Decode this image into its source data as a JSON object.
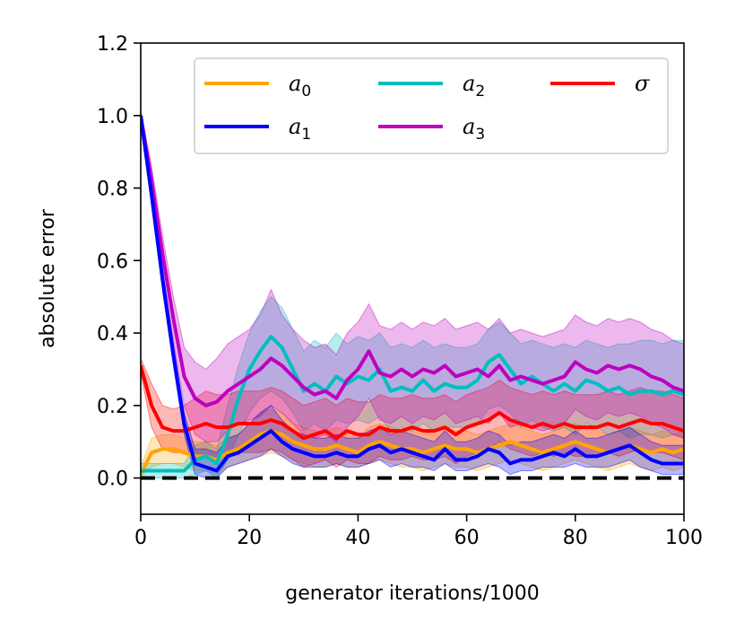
{
  "chart_data": {
    "type": "line",
    "title": "",
    "xlabel": "generator iterations/1000",
    "ylabel": "absolute error",
    "xlim": [
      0,
      100
    ],
    "ylim": [
      -0.1,
      1.2
    ],
    "xticks": [
      0,
      20,
      40,
      60,
      80,
      100
    ],
    "xtick_labels": [
      "0",
      "20",
      "40",
      "60",
      "80",
      "100"
    ],
    "yticks": [
      0.0,
      0.2,
      0.4,
      0.6,
      0.8,
      1.0,
      1.2
    ],
    "ytick_labels": [
      "0.0",
      "0.2",
      "0.4",
      "0.6",
      "0.8",
      "1.0",
      "1.2"
    ],
    "reference_line": {
      "y": 0,
      "style": "dashed",
      "color": "#000000"
    },
    "legend": {
      "placement": "top-right",
      "columns": 3
    },
    "x": [
      0,
      2,
      4,
      6,
      8,
      10,
      12,
      14,
      16,
      18,
      20,
      22,
      24,
      26,
      28,
      30,
      32,
      34,
      36,
      38,
      40,
      42,
      44,
      46,
      48,
      50,
      52,
      54,
      56,
      58,
      60,
      62,
      64,
      66,
      68,
      70,
      72,
      74,
      76,
      78,
      80,
      82,
      84,
      86,
      88,
      90,
      92,
      94,
      96,
      98,
      100
    ],
    "series": [
      {
        "name": "a",
        "sub": "0",
        "color": "#ffa500",
        "values": [
          0.01,
          0.07,
          0.08,
          0.08,
          0.07,
          0.06,
          0.06,
          0.05,
          0.07,
          0.08,
          0.1,
          0.12,
          0.13,
          0.12,
          0.1,
          0.09,
          0.08,
          0.08,
          0.09,
          0.08,
          0.07,
          0.09,
          0.1,
          0.09,
          0.08,
          0.08,
          0.07,
          0.08,
          0.09,
          0.08,
          0.08,
          0.07,
          0.08,
          0.09,
          0.1,
          0.09,
          0.08,
          0.07,
          0.08,
          0.09,
          0.1,
          0.09,
          0.08,
          0.07,
          0.08,
          0.09,
          0.08,
          0.07,
          0.08,
          0.07,
          0.08
        ],
        "lower": [
          0.0,
          0.03,
          0.04,
          0.04,
          0.03,
          0.02,
          0.02,
          0.01,
          0.03,
          0.04,
          0.05,
          0.06,
          0.07,
          0.06,
          0.05,
          0.04,
          0.03,
          0.03,
          0.04,
          0.03,
          0.03,
          0.04,
          0.05,
          0.04,
          0.03,
          0.03,
          0.02,
          0.03,
          0.04,
          0.03,
          0.03,
          0.02,
          0.03,
          0.04,
          0.05,
          0.04,
          0.03,
          0.02,
          0.03,
          0.04,
          0.05,
          0.04,
          0.03,
          0.02,
          0.03,
          0.04,
          0.03,
          0.02,
          0.03,
          0.02,
          0.03
        ],
        "upper": [
          0.03,
          0.11,
          0.12,
          0.12,
          0.11,
          0.1,
          0.1,
          0.09,
          0.11,
          0.12,
          0.15,
          0.18,
          0.19,
          0.18,
          0.15,
          0.14,
          0.13,
          0.13,
          0.14,
          0.13,
          0.11,
          0.14,
          0.15,
          0.14,
          0.13,
          0.13,
          0.12,
          0.13,
          0.14,
          0.13,
          0.13,
          0.12,
          0.13,
          0.14,
          0.15,
          0.14,
          0.13,
          0.12,
          0.13,
          0.14,
          0.15,
          0.14,
          0.13,
          0.12,
          0.13,
          0.14,
          0.13,
          0.12,
          0.13,
          0.12,
          0.13
        ]
      },
      {
        "name": "a",
        "sub": "2",
        "color": "#00bfbf",
        "values": [
          0.02,
          0.02,
          0.02,
          0.02,
          0.02,
          0.05,
          0.06,
          0.04,
          0.12,
          0.22,
          0.3,
          0.35,
          0.39,
          0.36,
          0.3,
          0.24,
          0.26,
          0.24,
          0.28,
          0.26,
          0.28,
          0.27,
          0.3,
          0.24,
          0.25,
          0.24,
          0.27,
          0.24,
          0.26,
          0.25,
          0.25,
          0.27,
          0.32,
          0.34,
          0.3,
          0.26,
          0.28,
          0.26,
          0.24,
          0.26,
          0.24,
          0.27,
          0.26,
          0.24,
          0.25,
          0.23,
          0.24,
          0.24,
          0.23,
          0.24,
          0.23
        ],
        "lower": [
          0.0,
          0.0,
          0.0,
          0.0,
          0.0,
          0.01,
          0.02,
          0.0,
          0.05,
          0.12,
          0.18,
          0.22,
          0.24,
          0.22,
          0.18,
          0.13,
          0.15,
          0.13,
          0.16,
          0.15,
          0.16,
          0.15,
          0.17,
          0.13,
          0.14,
          0.13,
          0.15,
          0.13,
          0.14,
          0.14,
          0.14,
          0.15,
          0.19,
          0.2,
          0.18,
          0.14,
          0.16,
          0.14,
          0.13,
          0.14,
          0.12,
          0.15,
          0.14,
          0.12,
          0.13,
          0.11,
          0.12,
          0.12,
          0.11,
          0.12,
          0.11
        ],
        "upper": [
          0.04,
          0.04,
          0.04,
          0.04,
          0.04,
          0.09,
          0.1,
          0.08,
          0.2,
          0.31,
          0.4,
          0.46,
          0.5,
          0.47,
          0.41,
          0.35,
          0.38,
          0.36,
          0.4,
          0.37,
          0.39,
          0.38,
          0.4,
          0.36,
          0.37,
          0.36,
          0.38,
          0.36,
          0.37,
          0.36,
          0.36,
          0.37,
          0.41,
          0.43,
          0.4,
          0.37,
          0.38,
          0.37,
          0.36,
          0.37,
          0.36,
          0.38,
          0.37,
          0.36,
          0.37,
          0.37,
          0.38,
          0.38,
          0.37,
          0.38,
          0.38
        ]
      },
      {
        "name": "σ",
        "sub": "",
        "color": "#ff0000",
        "values": [
          0.31,
          0.2,
          0.14,
          0.13,
          0.13,
          0.14,
          0.15,
          0.14,
          0.14,
          0.15,
          0.15,
          0.15,
          0.16,
          0.15,
          0.13,
          0.11,
          0.12,
          0.13,
          0.11,
          0.13,
          0.12,
          0.12,
          0.14,
          0.13,
          0.13,
          0.14,
          0.13,
          0.13,
          0.14,
          0.12,
          0.14,
          0.15,
          0.16,
          0.18,
          0.16,
          0.15,
          0.14,
          0.15,
          0.14,
          0.15,
          0.14,
          0.14,
          0.14,
          0.15,
          0.14,
          0.15,
          0.16,
          0.15,
          0.15,
          0.14,
          0.13
        ],
        "lower": [
          0.29,
          0.14,
          0.08,
          0.07,
          0.07,
          0.06,
          0.06,
          0.05,
          0.06,
          0.07,
          0.07,
          0.07,
          0.08,
          0.07,
          0.05,
          0.03,
          0.04,
          0.05,
          0.03,
          0.05,
          0.04,
          0.04,
          0.06,
          0.05,
          0.05,
          0.06,
          0.05,
          0.05,
          0.06,
          0.04,
          0.06,
          0.07,
          0.08,
          0.1,
          0.08,
          0.07,
          0.06,
          0.07,
          0.06,
          0.07,
          0.06,
          0.06,
          0.06,
          0.07,
          0.06,
          0.07,
          0.08,
          0.07,
          0.07,
          0.06,
          0.05
        ],
        "upper": [
          0.33,
          0.26,
          0.2,
          0.19,
          0.2,
          0.22,
          0.24,
          0.23,
          0.23,
          0.24,
          0.24,
          0.24,
          0.25,
          0.24,
          0.22,
          0.2,
          0.21,
          0.22,
          0.2,
          0.22,
          0.21,
          0.21,
          0.23,
          0.22,
          0.22,
          0.23,
          0.22,
          0.22,
          0.23,
          0.21,
          0.23,
          0.24,
          0.25,
          0.27,
          0.25,
          0.24,
          0.23,
          0.24,
          0.23,
          0.24,
          0.23,
          0.23,
          0.23,
          0.24,
          0.23,
          0.24,
          0.25,
          0.24,
          0.24,
          0.23,
          0.22
        ]
      },
      {
        "name": "a",
        "sub": "3",
        "color": "#bf00bf",
        "values": [
          1.0,
          0.82,
          0.62,
          0.44,
          0.28,
          0.22,
          0.2,
          0.21,
          0.24,
          0.26,
          0.28,
          0.3,
          0.33,
          0.31,
          0.28,
          0.25,
          0.23,
          0.24,
          0.22,
          0.27,
          0.3,
          0.35,
          0.29,
          0.28,
          0.3,
          0.28,
          0.3,
          0.29,
          0.31,
          0.28,
          0.29,
          0.3,
          0.28,
          0.31,
          0.27,
          0.28,
          0.27,
          0.26,
          0.27,
          0.28,
          0.32,
          0.3,
          0.29,
          0.31,
          0.3,
          0.31,
          0.3,
          0.28,
          0.27,
          0.25,
          0.24
        ],
        "lower": [
          0.99,
          0.78,
          0.57,
          0.38,
          0.2,
          0.12,
          0.1,
          0.1,
          0.13,
          0.15,
          0.16,
          0.17,
          0.2,
          0.18,
          0.15,
          0.12,
          0.11,
          0.12,
          0.1,
          0.14,
          0.17,
          0.22,
          0.16,
          0.15,
          0.17,
          0.15,
          0.17,
          0.16,
          0.18,
          0.15,
          0.16,
          0.17,
          0.15,
          0.18,
          0.14,
          0.15,
          0.14,
          0.13,
          0.14,
          0.15,
          0.19,
          0.17,
          0.16,
          0.18,
          0.17,
          0.18,
          0.17,
          0.15,
          0.14,
          0.12,
          0.11
        ],
        "upper": [
          1.01,
          0.86,
          0.67,
          0.5,
          0.36,
          0.32,
          0.3,
          0.33,
          0.37,
          0.39,
          0.41,
          0.45,
          0.52,
          0.45,
          0.41,
          0.38,
          0.36,
          0.37,
          0.34,
          0.4,
          0.43,
          0.48,
          0.42,
          0.41,
          0.43,
          0.41,
          0.43,
          0.42,
          0.44,
          0.41,
          0.42,
          0.43,
          0.41,
          0.44,
          0.4,
          0.41,
          0.4,
          0.39,
          0.4,
          0.41,
          0.45,
          0.43,
          0.42,
          0.44,
          0.43,
          0.44,
          0.43,
          0.41,
          0.4,
          0.38,
          0.37
        ]
      },
      {
        "name": "a",
        "sub": "1",
        "color": "#0000ff",
        "values": [
          1.0,
          0.78,
          0.55,
          0.34,
          0.15,
          0.04,
          0.03,
          0.02,
          0.06,
          0.07,
          0.09,
          0.11,
          0.13,
          0.1,
          0.08,
          0.07,
          0.06,
          0.06,
          0.07,
          0.06,
          0.06,
          0.08,
          0.09,
          0.07,
          0.08,
          0.07,
          0.06,
          0.05,
          0.08,
          0.05,
          0.05,
          0.06,
          0.08,
          0.07,
          0.04,
          0.05,
          0.05,
          0.06,
          0.07,
          0.06,
          0.08,
          0.06,
          0.06,
          0.07,
          0.08,
          0.09,
          0.07,
          0.05,
          0.04,
          0.04,
          0.04
        ],
        "lower": [
          0.99,
          0.76,
          0.52,
          0.31,
          0.12,
          0.01,
          0.0,
          0.0,
          0.03,
          0.04,
          0.05,
          0.06,
          0.08,
          0.06,
          0.04,
          0.03,
          0.03,
          0.03,
          0.04,
          0.03,
          0.03,
          0.04,
          0.05,
          0.03,
          0.04,
          0.03,
          0.03,
          0.02,
          0.04,
          0.02,
          0.02,
          0.03,
          0.04,
          0.03,
          0.01,
          0.02,
          0.02,
          0.03,
          0.03,
          0.03,
          0.04,
          0.03,
          0.03,
          0.03,
          0.04,
          0.05,
          0.03,
          0.02,
          0.01,
          0.01,
          0.01
        ],
        "upper": [
          1.01,
          0.8,
          0.58,
          0.37,
          0.18,
          0.08,
          0.08,
          0.07,
          0.11,
          0.12,
          0.15,
          0.18,
          0.2,
          0.16,
          0.13,
          0.12,
          0.11,
          0.11,
          0.12,
          0.11,
          0.11,
          0.13,
          0.14,
          0.12,
          0.13,
          0.12,
          0.11,
          0.1,
          0.13,
          0.1,
          0.1,
          0.11,
          0.13,
          0.12,
          0.09,
          0.1,
          0.1,
          0.11,
          0.12,
          0.11,
          0.13,
          0.11,
          0.11,
          0.12,
          0.13,
          0.14,
          0.12,
          0.1,
          0.09,
          0.09,
          0.09
        ]
      }
    ],
    "legend_order": [
      0,
      4,
      1,
      3,
      2
    ]
  }
}
